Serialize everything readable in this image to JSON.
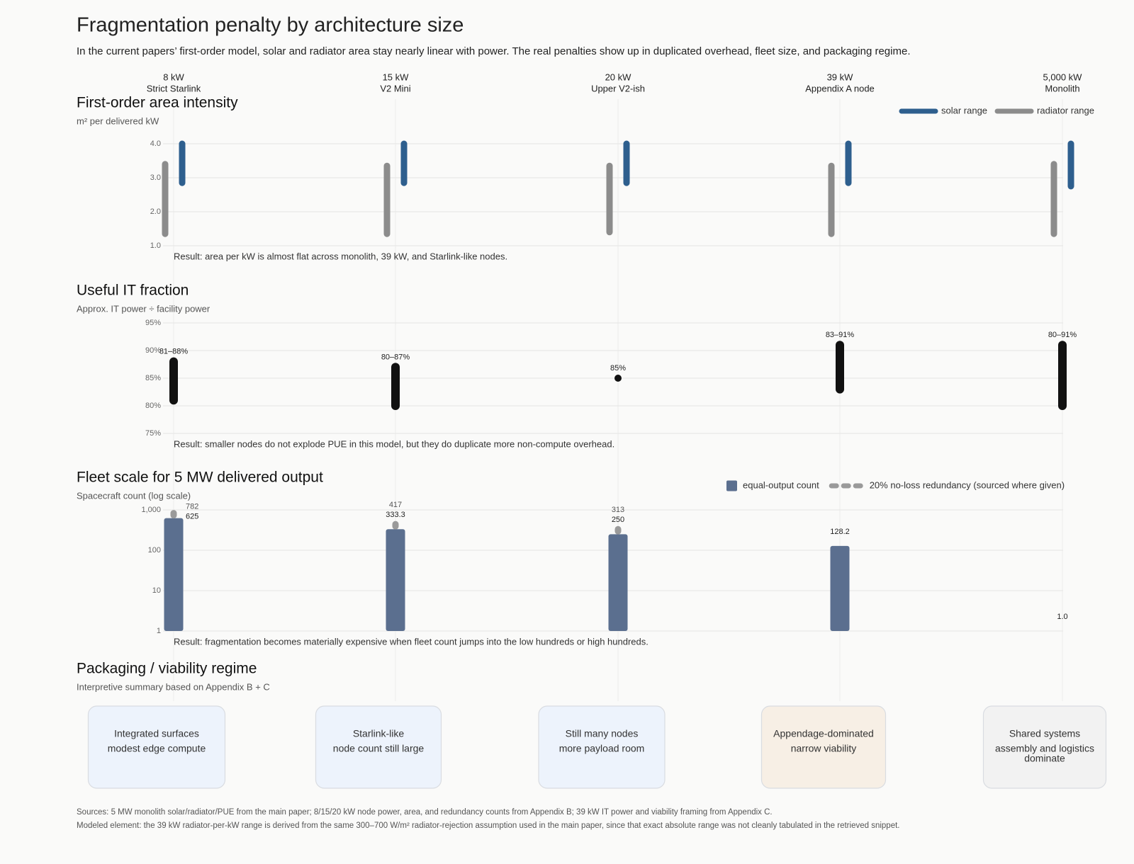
{
  "title": "Fragmentation penalty by architecture size",
  "subtitle": "In the current papers’ first-order model, solar and radiator area stay nearly linear with power. The real penalties show up in duplicated overhead, fleet size, and packaging regime.",
  "columns": [
    {
      "power": "8 kW",
      "name": "Strict Starlink"
    },
    {
      "power": "15 kW",
      "name": "V2 Mini"
    },
    {
      "power": "20 kW",
      "name": "Upper V2-ish"
    },
    {
      "power": "39 kW",
      "name": "Appendix A node"
    },
    {
      "power": "5,000 kW",
      "name": "Monolith"
    }
  ],
  "chart_data": [
    {
      "type": "range",
      "title": "First-order area intensity",
      "subtitle": "m² per delivered kW",
      "ylim": [
        1,
        4
      ],
      "yticks": [
        {
          "value": 1,
          "label": "1.0"
        },
        {
          "value": 2,
          "label": "2.0"
        },
        {
          "value": 3,
          "label": "3.0"
        },
        {
          "value": 4,
          "label": "4.0"
        }
      ],
      "grid": true,
      "legend": "upper right",
      "series": [
        {
          "name": "solar range",
          "color": "#2e5f8e",
          "low": [
            2.85,
            2.85,
            2.85,
            2.85,
            2.75
          ],
          "high": [
            4.0,
            4.0,
            4.0,
            4.0,
            4.0
          ]
        },
        {
          "name": "radiator range",
          "color": "#8c8c8c",
          "low": [
            1.35,
            1.35,
            1.4,
            1.35,
            1.35
          ],
          "high": [
            3.4,
            3.35,
            3.35,
            3.35,
            3.4
          ]
        }
      ],
      "annotation": "Result: area per kW is almost flat across monolith, 39 kW, and Starlink-like nodes."
    },
    {
      "type": "range",
      "title": "Useful IT fraction",
      "subtitle": "Approx. IT power ÷ facility power",
      "ylim": [
        75,
        95
      ],
      "yticks": [
        {
          "value": 75,
          "label": "75%"
        },
        {
          "value": 80,
          "label": "80%"
        },
        {
          "value": 85,
          "label": "85%"
        },
        {
          "value": 90,
          "label": "90%"
        },
        {
          "value": 95,
          "label": "95%"
        }
      ],
      "grid": true,
      "series": [
        {
          "color": "#111111",
          "low": [
            81,
            80,
            85,
            83,
            80
          ],
          "high": [
            88,
            87,
            85,
            91,
            91
          ],
          "value_labels": [
            "81–88%",
            "80–87%",
            "85%",
            "83–91%",
            "80–91%"
          ]
        }
      ],
      "annotation": "Result: smaller nodes do not explode PUE in this model, but they do duplicate more non-compute overhead."
    },
    {
      "type": "bar",
      "title": "Fleet scale for 5 MW delivered output",
      "subtitle": "Spacecraft count (log scale)",
      "log_scale": true,
      "ylim": [
        1,
        1000
      ],
      "yticks": [
        1,
        10,
        100,
        {
          "value": 1000,
          "label": "1,000"
        }
      ],
      "grid": true,
      "legend": "upper right",
      "series": [
        {
          "name": "equal-output count",
          "color": "#5b6f8f",
          "values": [
            625,
            333.3,
            250,
            128.2,
            1
          ],
          "value_labels": [
            "625",
            "333.3",
            "250",
            "128.2",
            "1.0"
          ]
        },
        {
          "name": "20% no-loss redundancy (sourced where given)",
          "color": "#9a9a9a",
          "values": [
            782,
            417,
            313,
            null,
            null
          ]
        }
      ],
      "annotation": "Result: fragmentation becomes materially expensive when fleet count jumps into the low hundreds or high hundreds."
    }
  ],
  "packaging": {
    "title": "Packaging / viability regime",
    "subtitle": "Interpretive summary based on Appendix B + C",
    "cards": [
      {
        "lines": [
          "Integrated surfaces",
          "modest edge compute"
        ],
        "color": "#edf3fc"
      },
      {
        "lines": [
          "Starlink-like",
          "node count still large"
        ],
        "color": "#edf3fc"
      },
      {
        "lines": [
          "Still many nodes",
          "more payload room"
        ],
        "color": "#edf3fc"
      },
      {
        "lines": [
          "Appendage-dominated",
          "narrow viability"
        ],
        "color": "#f7efe5"
      },
      {
        "lines": [
          "Shared systems",
          "assembly and logistics",
          "dominate"
        ],
        "color": "#f2f2f2"
      }
    ]
  },
  "sources": [
    "Sources: 5 MW monolith solar/radiator/PUE from the main paper; 8/15/20 kW node power, area, and redundancy counts from Appendix B; 39 kW IT power and viability framing from Appendix C.",
    "Modeled element: the 39 kW radiator-per-kW range is derived from the same 300–700 W/m² radiator-rejection assumption used in the main paper, since that exact absolute range was not cleanly tabulated in the retrieved snippet."
  ]
}
